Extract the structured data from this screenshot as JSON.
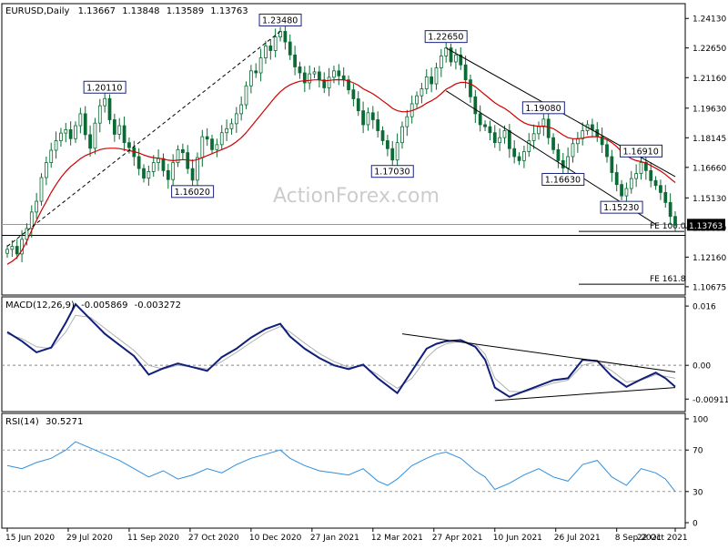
{
  "chart_data": [
    {
      "panel": "price",
      "type": "candlestick",
      "symbol": "EURUSD",
      "timeframe": "Daily",
      "ohlc_header": [
        "1.13667",
        "1.13848",
        "1.13589",
        "1.13763"
      ],
      "watermark": "ActionForex.com",
      "y_ticks": [
        1.2413,
        1.2265,
        1.2116,
        1.1963,
        1.18145,
        1.1666,
        1.1513,
        1.1363,
        1.1216,
        1.10675
      ],
      "y_tick_labels": [
        "1.24130",
        "1.22650",
        "1.21160",
        "1.19630",
        "1.18145",
        "1.16660",
        "1.15130",
        "1.13630",
        "1.12160",
        "1.10675"
      ],
      "ylim": [
        1.1035,
        1.2478
      ],
      "last_price": "1.13763",
      "close_series": [
        1.1255,
        1.127,
        1.1232,
        1.1305,
        1.136,
        1.1442,
        1.1496,
        1.1615,
        1.169,
        1.1752,
        1.18,
        1.1838,
        1.1855,
        1.181,
        1.1875,
        1.1935,
        1.183,
        1.1762,
        1.1888,
        1.1975,
        1.2011,
        1.1905,
        1.1832,
        1.1875,
        1.179,
        1.1765,
        1.172,
        1.166,
        1.1612,
        1.1645,
        1.169,
        1.171,
        1.165,
        1.1605,
        1.169,
        1.1755,
        1.174,
        1.166,
        1.1602,
        1.1715,
        1.182,
        1.1808,
        1.1755,
        1.178,
        1.184,
        1.186,
        1.1885,
        1.1935,
        1.198,
        1.2075,
        1.215,
        1.214,
        1.2215,
        1.2275,
        1.2252,
        1.232,
        1.2348,
        1.2295,
        1.223,
        1.217,
        1.214,
        1.209,
        1.2135,
        1.2145,
        1.2105,
        1.2065,
        1.2118,
        1.215,
        1.2125,
        1.2105,
        1.2055,
        1.201,
        1.195,
        1.188,
        1.194,
        1.1905,
        1.185,
        1.18,
        1.176,
        1.1703,
        1.179,
        1.187,
        1.192,
        1.1985,
        1.2025,
        1.206,
        1.212,
        1.2085,
        1.2165,
        1.2225,
        1.2265,
        1.2195,
        1.223,
        1.218,
        1.2105,
        1.202,
        1.1935,
        1.188,
        1.187,
        1.184,
        1.179,
        1.1815,
        1.185,
        1.176,
        1.172,
        1.17,
        1.1745,
        1.18,
        1.1835,
        1.187,
        1.1908,
        1.1815,
        1.1755,
        1.17,
        1.1663,
        1.172,
        1.1785,
        1.181,
        1.185,
        1.188,
        1.1855,
        1.182,
        1.178,
        1.172,
        1.164,
        1.158,
        1.1523,
        1.156,
        1.161,
        1.1635,
        1.1691,
        1.165,
        1.16,
        1.1575,
        1.154,
        1.149,
        1.142,
        1.1376
      ],
      "ema_series": [
        1.118,
        1.1195,
        1.1215,
        1.125,
        1.1295,
        1.135,
        1.14,
        1.145,
        1.1495,
        1.154,
        1.158,
        1.1615,
        1.1645,
        1.167,
        1.169,
        1.171,
        1.1725,
        1.1735,
        1.1745,
        1.1755,
        1.176,
        1.1762,
        1.1762,
        1.176,
        1.1755,
        1.175,
        1.1745,
        1.1738,
        1.1728,
        1.172,
        1.1715,
        1.1712,
        1.1708,
        1.1702,
        1.17,
        1.1702,
        1.1705,
        1.1703,
        1.17,
        1.1705,
        1.1715,
        1.1725,
        1.1735,
        1.1745,
        1.1755,
        1.1765,
        1.1778,
        1.1795,
        1.1815,
        1.184,
        1.187,
        1.19,
        1.193,
        1.196,
        1.199,
        1.202,
        1.2045,
        1.2065,
        1.208,
        1.209,
        1.2098,
        1.21,
        1.2102,
        1.2105,
        1.2105,
        1.21,
        1.2102,
        1.2105,
        1.2106,
        1.2105,
        1.21,
        1.209,
        1.2078,
        1.206,
        1.2048,
        1.2035,
        1.2018,
        1.2,
        1.1982,
        1.1962,
        1.195,
        1.1945,
        1.1945,
        1.195,
        1.196,
        1.1972,
        1.1988,
        1.2,
        1.2015,
        1.2035,
        1.2058,
        1.207,
        1.2085,
        1.2092,
        1.2092,
        1.2085,
        1.207,
        1.205,
        1.203,
        1.201,
        1.199,
        1.1975,
        1.1962,
        1.1945,
        1.1925,
        1.1905,
        1.189,
        1.188,
        1.1875,
        1.1872,
        1.1873,
        1.1868,
        1.186,
        1.1845,
        1.1828,
        1.1815,
        1.181,
        1.181,
        1.1812,
        1.1818,
        1.182,
        1.182,
        1.1815,
        1.1805,
        1.179,
        1.177,
        1.1745,
        1.1725,
        1.171,
        1.17,
        1.1695,
        1.1688,
        1.1675,
        1.1662,
        1.1648,
        1.163,
        1.161,
        1.159
      ],
      "annotations": [
        {
          "label": "1.20110",
          "index": 20,
          "price": 1.2011,
          "pos": "above"
        },
        {
          "label": "1.16020",
          "index": 38,
          "price": 1.1602,
          "pos": "below"
        },
        {
          "label": "1.23480",
          "index": 56,
          "price": 1.2348,
          "pos": "above"
        },
        {
          "label": "1.17030",
          "index": 79,
          "price": 1.1703,
          "pos": "below"
        },
        {
          "label": "1.22650",
          "index": 90,
          "price": 1.2265,
          "pos": "above"
        },
        {
          "label": "1.16630",
          "index": 114,
          "price": 1.1663,
          "pos": "below"
        },
        {
          "label": "1.19080",
          "index": 110,
          "price": 1.1908,
          "pos": "above"
        },
        {
          "label": "1.15230",
          "index": 126,
          "price": 1.1523,
          "pos": "below"
        },
        {
          "label": "1.16910",
          "index": 130,
          "price": 1.1691,
          "pos": "above"
        }
      ],
      "fe_levels": [
        {
          "label": "FE 100.0",
          "price": 1.1345
        },
        {
          "label": "FE 161.8",
          "price": 1.108
        }
      ],
      "hlines": [
        1.138,
        1.1325
      ],
      "trendlines": [
        {
          "from": [
            0,
            1.127
          ],
          "to": [
            56,
            1.2348
          ],
          "style": "dashed"
        },
        {
          "from": [
            90,
            1.2265
          ],
          "to": [
            137,
            1.162
          ],
          "style": "solid"
        },
        {
          "from": [
            90,
            1.205
          ],
          "to": [
            133,
            1.138
          ],
          "style": "solid"
        }
      ]
    },
    {
      "panel": "macd",
      "type": "line",
      "label": "MACD(12,26,9)",
      "header_values": [
        "-0.005869",
        "-0.003272"
      ],
      "ylim": [
        -0.012,
        0.0175
      ],
      "y_tick_labels": [
        "0.016",
        "0.00",
        "-0.009116"
      ],
      "y_tick_values": [
        0.016,
        0.0,
        -0.009116
      ],
      "x_index_range": [
        0,
        137
      ],
      "macd_points": [
        [
          0,
          0.009
        ],
        [
          3,
          0.0065
        ],
        [
          6,
          0.0035
        ],
        [
          9,
          0.0048
        ],
        [
          12,
          0.0115
        ],
        [
          14,
          0.0165
        ],
        [
          17,
          0.0125
        ],
        [
          20,
          0.0085
        ],
        [
          23,
          0.0055
        ],
        [
          26,
          0.0025
        ],
        [
          29,
          -0.0025
        ],
        [
          32,
          -0.0008
        ],
        [
          35,
          0.0005
        ],
        [
          38,
          -0.0005
        ],
        [
          41,
          -0.0015
        ],
        [
          44,
          0.0022
        ],
        [
          47,
          0.0045
        ],
        [
          50,
          0.0075
        ],
        [
          53,
          0.0098
        ],
        [
          56,
          0.0112
        ],
        [
          58,
          0.0078
        ],
        [
          61,
          0.0045
        ],
        [
          64,
          0.002
        ],
        [
          67,
          0.0
        ],
        [
          70,
          -0.001
        ],
        [
          73,
          0.0002
        ],
        [
          76,
          -0.0035
        ],
        [
          78,
          -0.0055
        ],
        [
          80,
          -0.0075
        ],
        [
          83,
          -0.0015
        ],
        [
          86,
          0.0045
        ],
        [
          88,
          0.0058
        ],
        [
          90,
          0.0065
        ],
        [
          93,
          0.0068
        ],
        [
          96,
          0.005
        ],
        [
          98,
          0.0015
        ],
        [
          100,
          -0.006
        ],
        [
          103,
          -0.0085
        ],
        [
          106,
          -0.007
        ],
        [
          109,
          -0.0055
        ],
        [
          112,
          -0.004
        ],
        [
          115,
          -0.0035
        ],
        [
          118,
          0.0015
        ],
        [
          121,
          0.0012
        ],
        [
          124,
          -0.003
        ],
        [
          127,
          -0.0058
        ],
        [
          130,
          -0.0038
        ],
        [
          133,
          -0.002
        ],
        [
          135,
          -0.0035
        ],
        [
          137,
          -0.0058
        ]
      ],
      "signal_points": [
        [
          0,
          0.0085
        ],
        [
          3,
          0.0072
        ],
        [
          6,
          0.005
        ],
        [
          9,
          0.0045
        ],
        [
          12,
          0.009
        ],
        [
          14,
          0.0135
        ],
        [
          17,
          0.013
        ],
        [
          20,
          0.01
        ],
        [
          23,
          0.007
        ],
        [
          26,
          0.004
        ],
        [
          29,
          0.0
        ],
        [
          32,
          -0.001
        ],
        [
          35,
          0.0
        ],
        [
          38,
          -0.0004
        ],
        [
          41,
          -0.001
        ],
        [
          44,
          0.001
        ],
        [
          47,
          0.0035
        ],
        [
          50,
          0.0062
        ],
        [
          53,
          0.0088
        ],
        [
          56,
          0.0105
        ],
        [
          58,
          0.009
        ],
        [
          61,
          0.006
        ],
        [
          64,
          0.0032
        ],
        [
          67,
          0.001
        ],
        [
          70,
          -0.0005
        ],
        [
          73,
          -0.0002
        ],
        [
          76,
          -0.0025
        ],
        [
          78,
          -0.0045
        ],
        [
          80,
          -0.0062
        ],
        [
          83,
          -0.0035
        ],
        [
          86,
          0.002
        ],
        [
          88,
          0.0045
        ],
        [
          90,
          0.0058
        ],
        [
          93,
          0.0065
        ],
        [
          96,
          0.0058
        ],
        [
          98,
          0.003
        ],
        [
          100,
          -0.0035
        ],
        [
          103,
          -0.007
        ],
        [
          106,
          -0.0072
        ],
        [
          109,
          -0.006
        ],
        [
          112,
          -0.0048
        ],
        [
          115,
          -0.004
        ],
        [
          118,
          0.0
        ],
        [
          121,
          0.001
        ],
        [
          124,
          -0.0015
        ],
        [
          127,
          -0.0045
        ],
        [
          130,
          -0.004
        ],
        [
          133,
          -0.0025
        ],
        [
          135,
          -0.003
        ],
        [
          137,
          -0.0035
        ]
      ],
      "trendlines": [
        {
          "from": [
            81,
            0.0085
          ],
          "to": [
            137,
            -0.0018
          ]
        },
        {
          "from": [
            100,
            -0.0095
          ],
          "to": [
            137,
            -0.006
          ]
        }
      ]
    },
    {
      "panel": "rsi",
      "type": "line",
      "label": "RSI(14)",
      "header_value": "30.5271",
      "ylim": [
        0,
        100
      ],
      "y_tick_values": [
        100,
        70,
        30,
        0
      ],
      "y_tick_labels": [
        "100",
        "70",
        "30",
        "0"
      ],
      "levels": [
        70,
        30
      ],
      "x_index_range": [
        0,
        137
      ],
      "rsi_points": [
        [
          0,
          55
        ],
        [
          3,
          52
        ],
        [
          6,
          58
        ],
        [
          9,
          62
        ],
        [
          12,
          70
        ],
        [
          14,
          78
        ],
        [
          17,
          72
        ],
        [
          20,
          66
        ],
        [
          23,
          60
        ],
        [
          26,
          52
        ],
        [
          29,
          44
        ],
        [
          32,
          50
        ],
        [
          35,
          42
        ],
        [
          38,
          46
        ],
        [
          41,
          52
        ],
        [
          44,
          48
        ],
        [
          47,
          56
        ],
        [
          50,
          62
        ],
        [
          53,
          66
        ],
        [
          56,
          70
        ],
        [
          58,
          62
        ],
        [
          61,
          55
        ],
        [
          64,
          50
        ],
        [
          67,
          48
        ],
        [
          70,
          46
        ],
        [
          73,
          52
        ],
        [
          76,
          40
        ],
        [
          78,
          36
        ],
        [
          80,
          42
        ],
        [
          83,
          55
        ],
        [
          86,
          62
        ],
        [
          88,
          66
        ],
        [
          90,
          68
        ],
        [
          93,
          62
        ],
        [
          96,
          50
        ],
        [
          98,
          44
        ],
        [
          100,
          32
        ],
        [
          103,
          38
        ],
        [
          106,
          46
        ],
        [
          109,
          52
        ],
        [
          112,
          44
        ],
        [
          115,
          40
        ],
        [
          118,
          56
        ],
        [
          121,
          60
        ],
        [
          124,
          44
        ],
        [
          127,
          36
        ],
        [
          130,
          52
        ],
        [
          133,
          48
        ],
        [
          135,
          42
        ],
        [
          137,
          30
        ]
      ]
    }
  ],
  "x_axis": {
    "tick_indices": [
      0,
      14,
      28,
      42,
      56,
      70,
      84,
      98,
      112,
      126,
      137
    ],
    "tick_labels": [
      "15 Jun 2020",
      "29 Jul 2020",
      "11 Sep 2020",
      "27 Oct 2020",
      "10 Dec 2020",
      "27 Jan 2021",
      "12 Mar 2021",
      "27 Apr 2021",
      "10 Jun 2021",
      "26 Jul 2021",
      "8 Sep 2021",
      "22 Oct 2021"
    ],
    "label_indices": [
      0,
      12.5,
      25,
      37.5,
      50,
      62.5,
      75,
      87.5,
      100,
      112.5,
      125,
      137
    ]
  },
  "colors": {
    "candle": "#0b6b34",
    "ema": "#d00000",
    "macd": "#0f1f7a",
    "signal": "#b0b0b0",
    "rsi": "#2e8fe0",
    "label_border": "#1a237e",
    "grid": "#000000"
  }
}
